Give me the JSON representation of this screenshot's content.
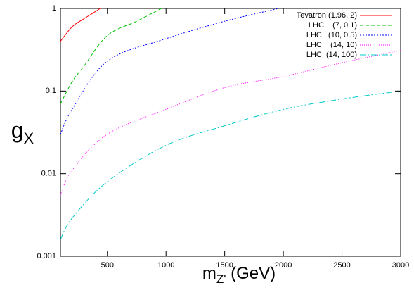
{
  "chart_data": {
    "type": "line",
    "xlabel": {
      "base": "m",
      "sub": "Z'",
      "rest": " (GeV)"
    },
    "ylabel": {
      "base": "g",
      "sub": "X"
    },
    "xlim": [
      100,
      3000
    ],
    "xticks": [
      500,
      1000,
      1500,
      2000,
      2500,
      3000
    ],
    "ylim": [
      0.001,
      1
    ],
    "yticks": [
      0.001,
      0.01,
      0.1,
      1
    ],
    "ylog": true,
    "legend": "top-right",
    "series": [
      {
        "name": "Tevatron (1.96, 2)",
        "color": "#ff0000",
        "dash": "none",
        "x": [
          100,
          200,
          300,
          440
        ],
        "values": [
          0.4,
          0.6,
          0.75,
          1
        ]
      },
      {
        "name": "LHC    (7, 0.1)",
        "color": "#00c000",
        "dash": "5,3",
        "x": [
          100,
          200,
          300,
          500,
          750,
          960
        ],
        "values": [
          0.07,
          0.13,
          0.2,
          0.47,
          0.7,
          1
        ]
      },
      {
        "name": "LHC   (10, 0.5)",
        "color": "#0000ff",
        "dash": "2,2",
        "x": [
          100,
          200,
          500,
          1000,
          1500,
          1960
        ],
        "values": [
          0.03,
          0.06,
          0.23,
          0.43,
          0.7,
          1
        ]
      },
      {
        "name": "LHC    (14, 10)",
        "color": "#ff00ff",
        "dash": "1,2",
        "x": [
          100,
          200,
          500,
          1000,
          1500,
          2000,
          2500,
          3000
        ],
        "values": [
          0.0055,
          0.011,
          0.03,
          0.06,
          0.11,
          0.15,
          0.22,
          0.31
        ]
      },
      {
        "name": "LHC  (14, 100)",
        "color": "#00c8c8",
        "dash": "8,3,2,3",
        "x": [
          100,
          200,
          500,
          1000,
          1500,
          2000,
          2500,
          3000
        ],
        "values": [
          0.0016,
          0.0029,
          0.008,
          0.022,
          0.038,
          0.06,
          0.08,
          0.1
        ]
      }
    ]
  }
}
